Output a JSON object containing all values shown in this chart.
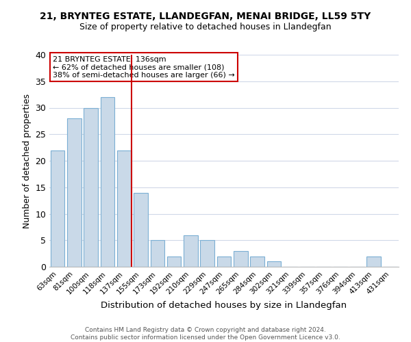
{
  "title": "21, BRYNTEG ESTATE, LLANDEGFAN, MENAI BRIDGE, LL59 5TY",
  "subtitle": "Size of property relative to detached houses in Llandegfan",
  "xlabel": "Distribution of detached houses by size in Llandegfan",
  "ylabel": "Number of detached properties",
  "categories": [
    "63sqm",
    "81sqm",
    "100sqm",
    "118sqm",
    "137sqm",
    "155sqm",
    "173sqm",
    "192sqm",
    "210sqm",
    "229sqm",
    "247sqm",
    "265sqm",
    "284sqm",
    "302sqm",
    "321sqm",
    "339sqm",
    "357sqm",
    "376sqm",
    "394sqm",
    "413sqm",
    "431sqm"
  ],
  "values": [
    22,
    28,
    30,
    32,
    22,
    14,
    5,
    2,
    6,
    5,
    2,
    3,
    2,
    1,
    0,
    0,
    0,
    0,
    0,
    2,
    0
  ],
  "bar_color": "#c9d9e8",
  "bar_edge_color": "#7bafd4",
  "vline_x_index": 4,
  "vline_color": "#cc0000",
  "annotation_line1": "21 BRYNTEG ESTATE: 136sqm",
  "annotation_line2": "← 62% of detached houses are smaller (108)",
  "annotation_line3": "38% of semi-detached houses are larger (66) →",
  "annotation_box_edge_color": "#cc0000",
  "ylim": [
    0,
    40
  ],
  "yticks": [
    0,
    5,
    10,
    15,
    20,
    25,
    30,
    35,
    40
  ],
  "footer_line1": "Contains HM Land Registry data © Crown copyright and database right 2024.",
  "footer_line2": "Contains public sector information licensed under the Open Government Licence v3.0.",
  "background_color": "#ffffff",
  "grid_color": "#d0d8e8"
}
